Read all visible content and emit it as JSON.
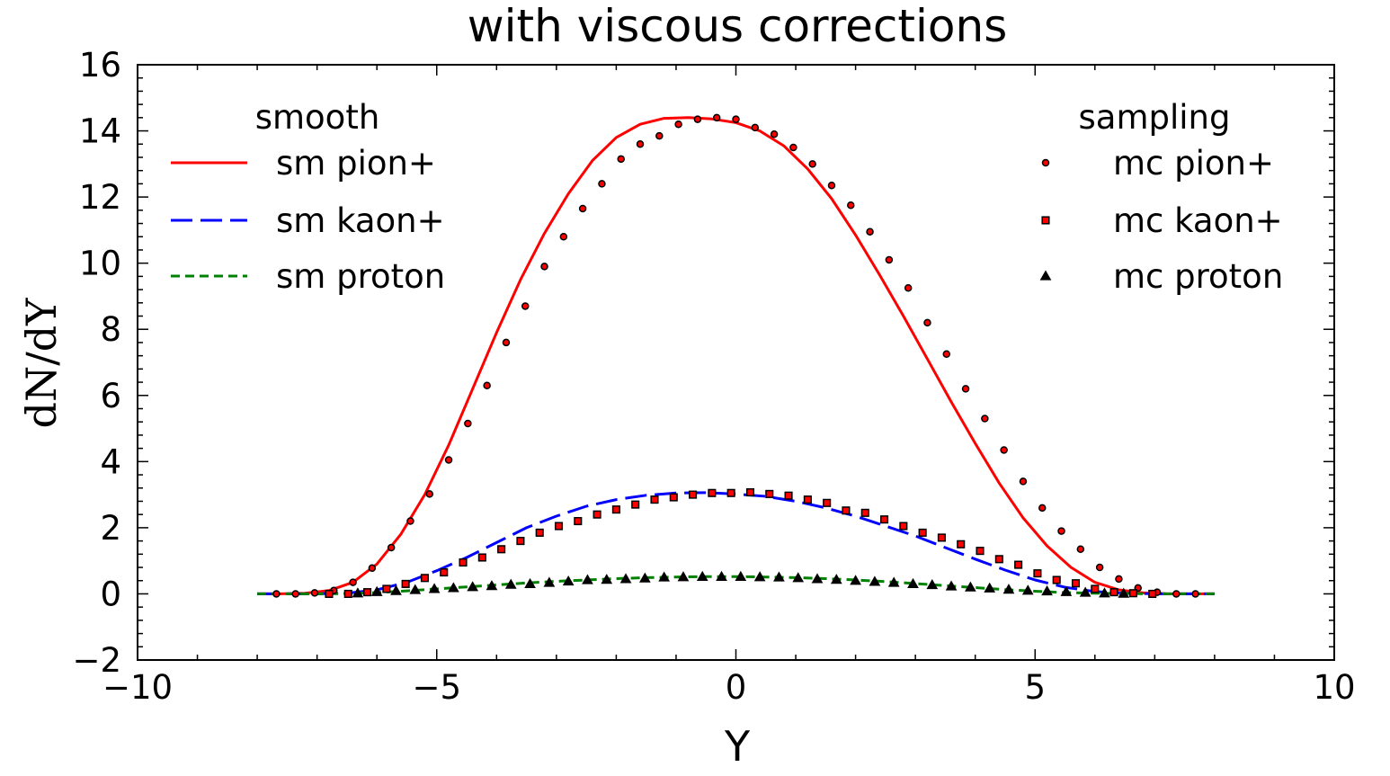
{
  "chart_data": {
    "type": "line",
    "title": "with viscous corrections",
    "xlabel": "Y",
    "ylabel": "dN/dY",
    "xlim": [
      -10,
      10
    ],
    "ylim": [
      -2,
      16
    ],
    "xticks": [
      -10,
      -5,
      0,
      5,
      10
    ],
    "yticks": [
      -2,
      0,
      2,
      4,
      6,
      8,
      10,
      12,
      14,
      16
    ],
    "grid": false,
    "legends": [
      {
        "title": "smooth",
        "placement": "upper-left",
        "entries": [
          "sm pion+",
          "sm kaon+",
          "sm proton"
        ]
      },
      {
        "title": "sampling",
        "placement": "upper-right",
        "entries": [
          "mc pion+",
          "mc kaon+",
          "mc proton"
        ]
      }
    ],
    "series": [
      {
        "name": "sm pion+",
        "kind": "line",
        "color": "#ff0000",
        "dash": "solid",
        "x": [
          -8,
          -7.6,
          -7.2,
          -6.8,
          -6.4,
          -6.0,
          -5.6,
          -5.2,
          -4.8,
          -4.4,
          -4.0,
          -3.6,
          -3.2,
          -2.8,
          -2.4,
          -2.0,
          -1.6,
          -1.2,
          -0.8,
          -0.4,
          0,
          0.4,
          0.8,
          1.2,
          1.6,
          2.0,
          2.4,
          2.8,
          3.2,
          3.6,
          4.0,
          4.4,
          4.8,
          5.2,
          5.6,
          6.0,
          6.4,
          6.8,
          7.2,
          7.6,
          8
        ],
        "y": [
          0,
          0,
          0.02,
          0.1,
          0.35,
          0.9,
          1.8,
          3.0,
          4.5,
          6.2,
          7.9,
          9.5,
          10.9,
          12.1,
          13.1,
          13.8,
          14.2,
          14.38,
          14.4,
          14.36,
          14.25,
          14.0,
          13.55,
          12.85,
          11.95,
          10.85,
          9.65,
          8.4,
          7.1,
          5.8,
          4.55,
          3.35,
          2.3,
          1.45,
          0.8,
          0.35,
          0.12,
          0.03,
          0,
          0,
          0
        ]
      },
      {
        "name": "sm kaon+",
        "kind": "line",
        "color": "#0000ff",
        "dash": "long-dash",
        "x": [
          -8,
          -7.5,
          -7.0,
          -6.5,
          -6.0,
          -5.5,
          -5.0,
          -4.5,
          -4.0,
          -3.5,
          -3.0,
          -2.5,
          -2.0,
          -1.5,
          -1.0,
          -0.5,
          0,
          0.5,
          1.0,
          1.5,
          2.0,
          2.5,
          3.0,
          3.5,
          4.0,
          4.5,
          5.0,
          5.5,
          6.0,
          6.5,
          7.0,
          7.5,
          8
        ],
        "y": [
          0,
          0,
          0,
          0.02,
          0.12,
          0.35,
          0.7,
          1.1,
          1.55,
          2.0,
          2.35,
          2.65,
          2.85,
          2.98,
          3.05,
          3.06,
          3.02,
          2.95,
          2.8,
          2.6,
          2.35,
          2.05,
          1.75,
          1.4,
          1.05,
          0.72,
          0.42,
          0.2,
          0.07,
          0.02,
          0,
          0,
          0
        ]
      },
      {
        "name": "sm proton",
        "kind": "line",
        "color": "#008000",
        "dash": "short-dash",
        "x": [
          -8,
          -7,
          -6.5,
          -6,
          -5.5,
          -5,
          -4.5,
          -4,
          -3.5,
          -3,
          -2.5,
          -2,
          -1.5,
          -1,
          -0.5,
          0,
          0.5,
          1,
          1.5,
          2,
          2.5,
          3,
          3.5,
          4,
          4.5,
          5,
          5.5,
          6,
          6.5,
          7,
          8
        ],
        "y": [
          0,
          0,
          0.01,
          0.04,
          0.09,
          0.15,
          0.21,
          0.27,
          0.33,
          0.38,
          0.42,
          0.46,
          0.49,
          0.51,
          0.52,
          0.52,
          0.51,
          0.49,
          0.46,
          0.42,
          0.37,
          0.31,
          0.25,
          0.19,
          0.13,
          0.08,
          0.04,
          0.02,
          0.01,
          0,
          0
        ]
      },
      {
        "name": "mc pion+",
        "kind": "marker",
        "marker": "circle",
        "color": "#ff0000",
        "x": [
          -7.68,
          -7.36,
          -7.04,
          -6.72,
          -6.4,
          -6.08,
          -5.76,
          -5.44,
          -5.12,
          -4.8,
          -4.48,
          -4.16,
          -3.84,
          -3.52,
          -3.2,
          -2.88,
          -2.56,
          -2.24,
          -1.92,
          -1.6,
          -1.28,
          -0.96,
          -0.64,
          -0.32,
          0,
          0.32,
          0.64,
          0.96,
          1.28,
          1.6,
          1.92,
          2.24,
          2.56,
          2.88,
          3.2,
          3.52,
          3.84,
          4.16,
          4.48,
          4.8,
          5.12,
          5.44,
          5.76,
          6.08,
          6.4,
          6.72,
          7.04,
          7.36,
          7.68
        ],
        "y": [
          0,
          0,
          0.03,
          0.1,
          0.35,
          0.78,
          1.4,
          2.2,
          3.02,
          4.05,
          5.15,
          6.3,
          7.6,
          8.7,
          9.9,
          10.8,
          11.65,
          12.4,
          13.15,
          13.6,
          13.85,
          14.2,
          14.35,
          14.4,
          14.35,
          14.1,
          13.9,
          13.5,
          13.0,
          12.35,
          11.75,
          10.95,
          10.1,
          9.25,
          8.2,
          7.25,
          6.2,
          5.3,
          4.35,
          3.4,
          2.6,
          1.9,
          1.35,
          0.8,
          0.45,
          0.18,
          0.05,
          0,
          0
        ]
      },
      {
        "name": "mc kaon+",
        "kind": "marker",
        "marker": "square",
        "color": "#ff0000",
        "x": [
          -6.8,
          -6.48,
          -6.16,
          -5.84,
          -5.52,
          -5.2,
          -4.88,
          -4.56,
          -4.24,
          -3.92,
          -3.6,
          -3.28,
          -2.96,
          -2.64,
          -2.32,
          -2.0,
          -1.68,
          -1.36,
          -1.04,
          -0.72,
          -0.4,
          -0.08,
          0.24,
          0.56,
          0.88,
          1.2,
          1.52,
          1.84,
          2.16,
          2.48,
          2.8,
          3.12,
          3.44,
          3.76,
          4.08,
          4.4,
          4.72,
          5.04,
          5.36,
          5.68,
          6.0,
          6.32,
          6.64,
          6.96
        ],
        "y": [
          0,
          0,
          0.05,
          0.15,
          0.3,
          0.48,
          0.65,
          0.95,
          1.1,
          1.35,
          1.6,
          1.85,
          2.05,
          2.2,
          2.4,
          2.55,
          2.7,
          2.85,
          2.92,
          3.0,
          3.05,
          3.05,
          3.07,
          3.02,
          2.97,
          2.85,
          2.75,
          2.52,
          2.45,
          2.25,
          2.05,
          1.85,
          1.7,
          1.5,
          1.3,
          1.05,
          0.88,
          0.62,
          0.42,
          0.32,
          0.15,
          0.05,
          0.02,
          0
        ]
      },
      {
        "name": "mc proton",
        "kind": "marker",
        "marker": "triangle",
        "color": "#000000",
        "x": [
          -6.32,
          -6.0,
          -5.68,
          -5.36,
          -5.04,
          -4.72,
          -4.4,
          -4.08,
          -3.76,
          -3.44,
          -3.12,
          -2.8,
          -2.48,
          -2.16,
          -1.84,
          -1.52,
          -1.2,
          -0.88,
          -0.56,
          -0.24,
          0.08,
          0.4,
          0.72,
          1.04,
          1.36,
          1.68,
          2.0,
          2.32,
          2.64,
          2.96,
          3.28,
          3.6,
          3.92,
          4.24,
          4.56,
          4.88,
          5.2,
          5.52,
          5.84,
          6.16,
          6.48
        ],
        "y": [
          0.02,
          0.06,
          0.09,
          0.12,
          0.15,
          0.18,
          0.21,
          0.24,
          0.28,
          0.3,
          0.34,
          0.38,
          0.42,
          0.43,
          0.45,
          0.47,
          0.5,
          0.51,
          0.52,
          0.52,
          0.52,
          0.51,
          0.5,
          0.48,
          0.45,
          0.43,
          0.4,
          0.37,
          0.34,
          0.3,
          0.27,
          0.23,
          0.2,
          0.17,
          0.13,
          0.1,
          0.08,
          0.06,
          0.04,
          0.02,
          0.01
        ]
      }
    ]
  }
}
